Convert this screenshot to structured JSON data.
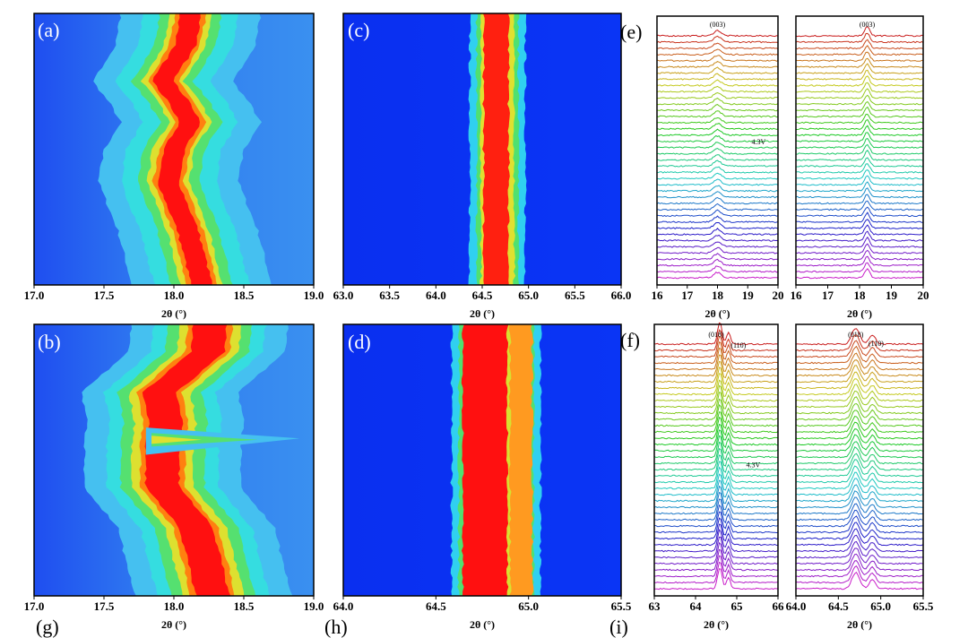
{
  "chart_data": [
    {
      "type": "heatmap",
      "panel_label": "(a)",
      "xlabel": "2θ (°)",
      "xlim": [
        17,
        19
      ],
      "xticks": [
        {
          "value": 17,
          "label": "17.0"
        },
        17.5,
        {
          "value": 18,
          "label": "18.0"
        },
        18.5,
        {
          "value": 19,
          "label": "19.0"
        }
      ]
    },
    {
      "type": "heatmap",
      "panel_label": "(c)",
      "xlabel": "2θ (°)",
      "xlim": [
        63,
        66
      ],
      "xticks": [
        {
          "value": 63,
          "label": "63.0"
        },
        63.5,
        {
          "value": 64,
          "label": "64.0"
        },
        64.5,
        {
          "value": 65,
          "label": "65.0"
        },
        65.5,
        {
          "value": 66,
          "label": "66.0"
        }
      ]
    },
    {
      "type": "waterfall",
      "panel_label": "(e)",
      "xlabel": "2θ (°)",
      "xlim": [
        16,
        20
      ],
      "xticks": [
        16,
        17,
        18,
        19,
        20
      ],
      "annotations": [
        "(003)",
        "4.3V"
      ]
    },
    {
      "type": "waterfall",
      "xlabel": "2θ (°)",
      "xlim": [
        16,
        20
      ],
      "xticks": [
        16,
        17,
        18,
        19,
        20
      ],
      "annotations": [
        "(003)"
      ]
    },
    {
      "type": "heatmap",
      "panel_label": "(b)",
      "xlabel": "2θ (°)",
      "xlim": [
        17,
        19
      ],
      "xticks": [
        {
          "value": 17,
          "label": "17.0"
        },
        17.5,
        {
          "value": 18,
          "label": "18.0"
        },
        18.5,
        {
          "value": 19,
          "label": "19.0"
        }
      ]
    },
    {
      "type": "heatmap",
      "panel_label": "(d)",
      "xlabel": "2θ (°)",
      "xlim": [
        64,
        65.5
      ],
      "xticks": [
        {
          "value": 64,
          "label": "64.0"
        },
        64.5,
        {
          "value": 65,
          "label": "65.0"
        },
        65.5
      ]
    },
    {
      "type": "waterfall",
      "panel_label": "(f)",
      "xlabel": "2θ (°)",
      "xlim": [
        63,
        66
      ],
      "xticks": [
        63,
        64,
        65,
        66
      ],
      "annotations": [
        "(018)",
        "(110)",
        "4.3V"
      ]
    },
    {
      "type": "waterfall",
      "xlabel": "2θ (°)",
      "xlim": [
        64,
        65.5
      ],
      "xticks": [
        {
          "value": 64,
          "label": "64.0"
        },
        64.5,
        {
          "value": 65,
          "label": "65.0"
        },
        65.5
      ],
      "annotations": [
        "(018)",
        "(110)"
      ]
    }
  ],
  "bottom_labels": [
    "(g)",
    "(h)",
    "(i)"
  ]
}
